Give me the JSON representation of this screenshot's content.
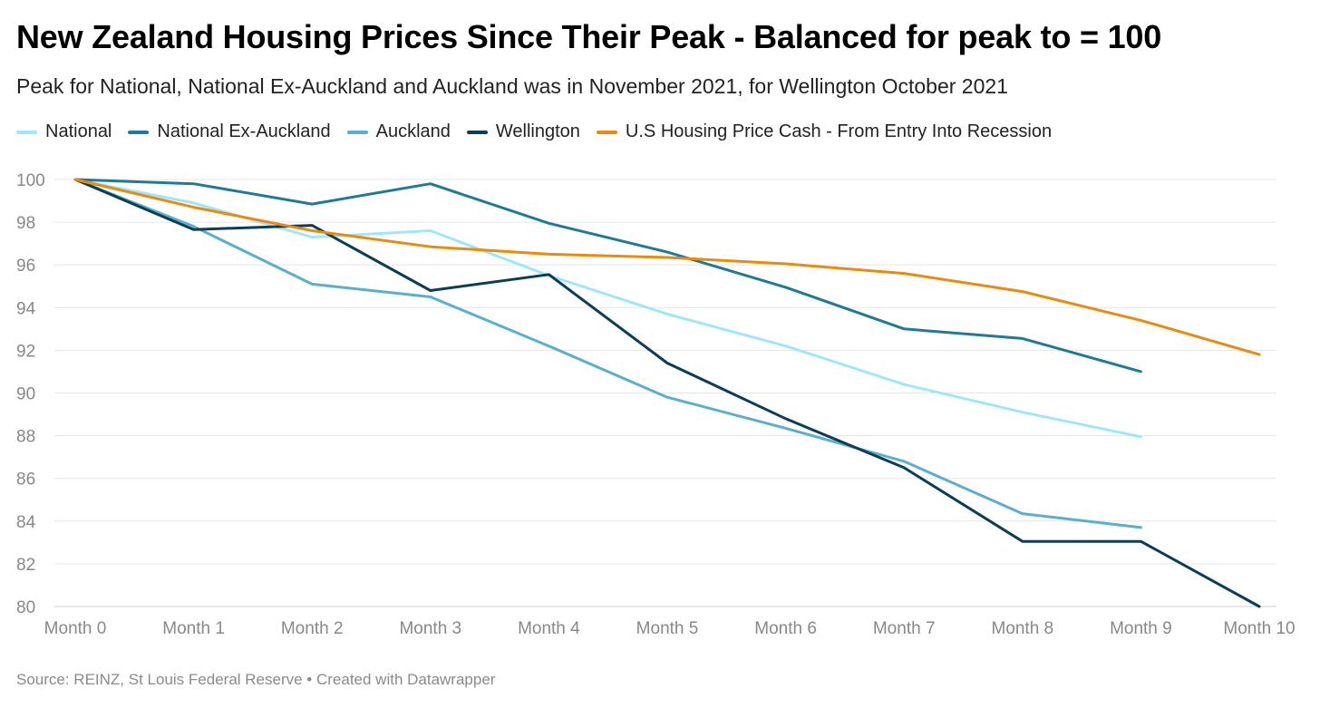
{
  "title": "New Zealand Housing Prices Since Their Peak - Balanced for peak to = 100",
  "subtitle": "Peak for National, National Ex-Auckland and Auckland was in November 2021, for Wellington October 2021",
  "source": "Source: REINZ, St Louis Federal Reserve • Created with Datawrapper",
  "chart_data": {
    "type": "line",
    "title": "New Zealand Housing Prices Since Their Peak - Balanced for peak to = 100",
    "subtitle": "Peak for National, National Ex-Auckland and Auckland was in November 2021, for Wellington October 2021",
    "x": [
      "Month 0",
      "Month 1",
      "Month 2",
      "Month 3",
      "Month 4",
      "Month 5",
      "Month 6",
      "Month 7",
      "Month 8",
      "Month 9",
      "Month 10"
    ],
    "ylim": [
      80,
      100
    ],
    "yticks": [
      80,
      82,
      84,
      86,
      88,
      90,
      92,
      94,
      96,
      98,
      100
    ],
    "grid": true,
    "legend_position": "top",
    "series": [
      {
        "name": "National",
        "color": "#9ee7fb",
        "values": [
          100,
          98.9,
          97.3,
          97.6,
          95.5,
          93.7,
          92.2,
          90.4,
          89.1,
          87.95,
          null
        ]
      },
      {
        "name": "National Ex-Auckland",
        "color": "#1f7a98",
        "values": [
          100,
          99.8,
          98.85,
          99.8,
          97.95,
          96.6,
          94.95,
          93.0,
          92.55,
          91.0,
          null
        ]
      },
      {
        "name": "Auckland",
        "color": "#5aaed0",
        "values": [
          100,
          97.8,
          95.1,
          94.5,
          92.2,
          89.8,
          88.35,
          86.8,
          84.35,
          83.7,
          null
        ]
      },
      {
        "name": "Wellington",
        "color": "#0b3d57",
        "values": [
          100,
          97.65,
          97.85,
          94.8,
          95.55,
          91.4,
          88.8,
          86.5,
          83.05,
          83.05,
          80.0
        ]
      },
      {
        "name": "U.S Housing Price Cash - From Entry Into Recession",
        "color": "#ea8a0f",
        "values": [
          100,
          98.7,
          97.6,
          96.85,
          96.5,
          96.35,
          96.05,
          95.6,
          94.75,
          93.4,
          91.8
        ]
      }
    ]
  }
}
